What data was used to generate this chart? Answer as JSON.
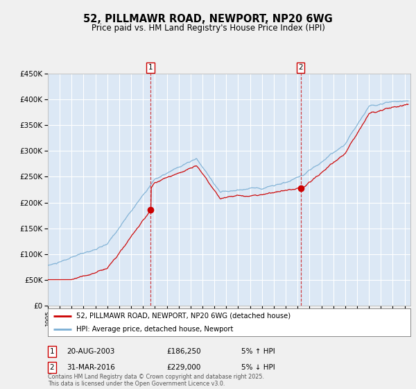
{
  "title_line1": "52, PILLMAWR ROAD, NEWPORT, NP20 6WG",
  "title_line2": "Price paid vs. HM Land Registry's House Price Index (HPI)",
  "legend_label_red": "52, PILLMAWR ROAD, NEWPORT, NP20 6WG (detached house)",
  "legend_label_blue": "HPI: Average price, detached house, Newport",
  "annotation1_date": "20-AUG-2003",
  "annotation1_price": "£186,250",
  "annotation1_pct": "5% ↑ HPI",
  "annotation1_year": 2003.64,
  "annotation1_price_val": 186250,
  "annotation2_date": "31-MAR-2016",
  "annotation2_price": "£229,000",
  "annotation2_pct": "5% ↓ HPI",
  "annotation2_year": 2016.25,
  "annotation2_price_val": 229000,
  "fig_bg_color": "#f0f0f0",
  "plot_bg_color": "#dce8f5",
  "grid_color": "#ffffff",
  "red_line_color": "#cc0000",
  "blue_line_color": "#7bafd4",
  "footer_text": "Contains HM Land Registry data © Crown copyright and database right 2025.\nThis data is licensed under the Open Government Licence v3.0.",
  "ylim": [
    0,
    450000
  ],
  "yticks": [
    0,
    50000,
    100000,
    150000,
    200000,
    250000,
    300000,
    350000,
    400000,
    450000
  ],
  "xlim": [
    1995,
    2025.5
  ],
  "xtick_years": [
    1995,
    1996,
    1997,
    1998,
    1999,
    2000,
    2001,
    2002,
    2003,
    2004,
    2005,
    2006,
    2007,
    2008,
    2009,
    2010,
    2011,
    2012,
    2013,
    2014,
    2015,
    2016,
    2017,
    2018,
    2019,
    2020,
    2021,
    2022,
    2023,
    2024,
    2025
  ]
}
